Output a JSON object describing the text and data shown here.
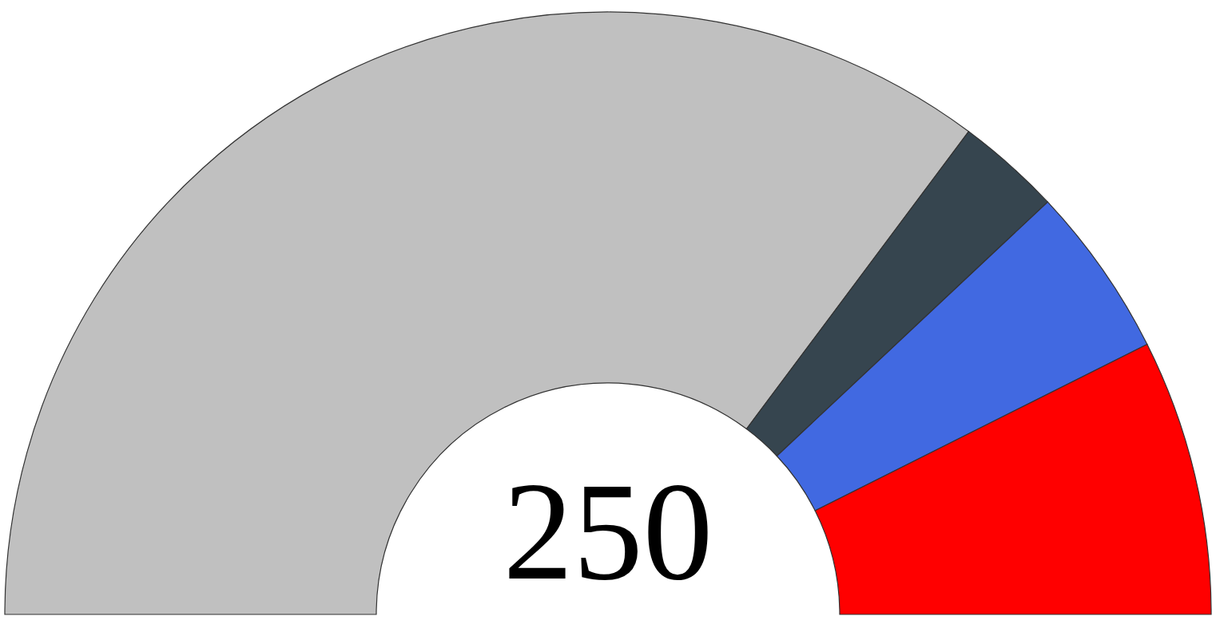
{
  "chart_data": {
    "type": "donut",
    "categories": [
      null,
      null,
      null,
      null
    ],
    "values": [
      70.4,
      5.6,
      9.2,
      14.8
    ],
    "colors": [
      "#c0c0c0",
      "#36454f",
      "#4169e1",
      "#ff0000"
    ],
    "annotations": [
      "250"
    ]
  }
}
